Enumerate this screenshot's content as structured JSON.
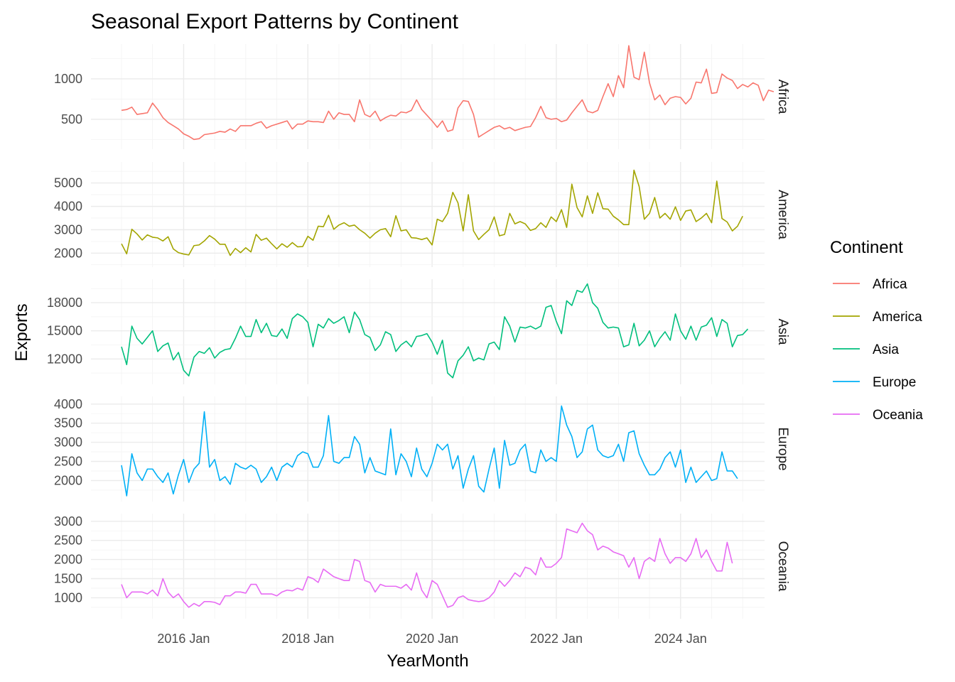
{
  "chart_data": {
    "type": "line",
    "title": "Seasonal Export Patterns by Continent",
    "xlabel": "YearMonth",
    "ylabel": "Exports",
    "x_start": "2015-01",
    "x_frequency": "monthly",
    "x_ticks": [
      "2016 Jan",
      "2018 Jan",
      "2020 Jan",
      "2022 Jan",
      "2024 Jan"
    ],
    "xlim": [
      "2015-01",
      "2024-12"
    ],
    "grid": true,
    "legend": {
      "title": "Continent",
      "position": "right"
    },
    "facets": "stacked vertically, free y scales, strip labels on right",
    "series": [
      {
        "name": "Africa",
        "color": "#F8766D",
        "yticks": [
          500,
          1000
        ],
        "ylim": [
          130,
          1430
        ],
        "values": [
          610,
          620,
          650,
          560,
          570,
          580,
          700,
          620,
          520,
          460,
          420,
          380,
          320,
          290,
          250,
          260,
          310,
          320,
          330,
          350,
          340,
          380,
          350,
          420,
          420,
          420,
          450,
          470,
          390,
          420,
          440,
          460,
          480,
          380,
          440,
          440,
          480,
          470,
          470,
          460,
          600,
          500,
          580,
          560,
          560,
          470,
          740,
          560,
          530,
          600,
          480,
          520,
          550,
          540,
          590,
          580,
          610,
          740,
          620,
          550,
          480,
          400,
          480,
          350,
          370,
          640,
          730,
          720,
          560,
          280,
          320,
          360,
          400,
          420,
          380,
          400,
          360,
          380,
          400,
          410,
          520,
          660,
          520,
          500,
          510,
          470,
          490,
          580,
          660,
          740,
          600,
          580,
          610,
          780,
          940,
          780,
          1040,
          890,
          1410,
          1020,
          990,
          1330,
          950,
          740,
          800,
          680,
          760,
          780,
          770,
          690,
          760,
          960,
          950,
          1120,
          820,
          830,
          1060,
          1010,
          980,
          880,
          930,
          900,
          950,
          920,
          730,
          860,
          840
        ]
      },
      {
        "name": "America",
        "color": "#A3A500",
        "yticks": [
          2000,
          3000,
          4000,
          5000
        ],
        "ylim": [
          1400,
          5900
        ],
        "values": [
          2400,
          1970,
          3020,
          2820,
          2560,
          2780,
          2680,
          2650,
          2520,
          2700,
          2180,
          2020,
          1960,
          1920,
          2320,
          2350,
          2520,
          2750,
          2600,
          2380,
          2380,
          1900,
          2200,
          2020,
          2230,
          2050,
          2800,
          2550,
          2640,
          2400,
          2180,
          2400,
          2250,
          2450,
          2270,
          2280,
          2720,
          2550,
          3150,
          3130,
          3620,
          3020,
          3200,
          3300,
          3150,
          3200,
          3000,
          2850,
          2640,
          2850,
          3000,
          3050,
          2700,
          3600,
          2950,
          3000,
          2660,
          2640,
          2580,
          2650,
          2350,
          3450,
          3350,
          3700,
          4600,
          4150,
          2950,
          4500,
          2950,
          2580,
          2800,
          3000,
          3550,
          2740,
          2800,
          3700,
          3250,
          3350,
          3250,
          2970,
          3050,
          3300,
          3100,
          3550,
          3350,
          3860,
          3100,
          4950,
          3950,
          3550,
          4450,
          3700,
          4580,
          3900,
          3880,
          3580,
          3420,
          3220,
          3220,
          5550,
          4850,
          3450,
          3700,
          4380,
          3500,
          3700,
          3450,
          3980,
          3400,
          3800,
          3850,
          3350,
          3500,
          3700,
          3300,
          5080,
          3480,
          3330,
          2950,
          3150,
          3580
        ]
      },
      {
        "name": "Asia",
        "color": "#00BF7D",
        "yticks": [
          12000,
          15000,
          18000
        ],
        "ylim": [
          9300,
          20500
        ],
        "values": [
          13300,
          11400,
          15500,
          14200,
          13600,
          14300,
          15000,
          12800,
          13400,
          13700,
          11900,
          12700,
          10800,
          10200,
          12200,
          12800,
          12600,
          13200,
          12100,
          12700,
          13000,
          13100,
          14200,
          15500,
          14400,
          14400,
          16200,
          14800,
          15800,
          14500,
          14400,
          15200,
          14200,
          16300,
          16800,
          16500,
          15900,
          13300,
          15700,
          15300,
          16300,
          15800,
          16100,
          16500,
          14800,
          17000,
          16200,
          14600,
          14300,
          12900,
          13500,
          14900,
          14600,
          12800,
          13500,
          13900,
          13300,
          14400,
          14500,
          14700,
          13800,
          12500,
          14000,
          10500,
          10000,
          11800,
          12400,
          13300,
          11800,
          12100,
          11900,
          13600,
          13800,
          13000,
          16500,
          15500,
          13800,
          15400,
          15300,
          15500,
          15200,
          15500,
          17500,
          17700,
          16000,
          14700,
          18200,
          17700,
          19300,
          19100,
          20000,
          18000,
          17400,
          15900,
          15300,
          15400,
          15300,
          13300,
          13500,
          15800,
          13400,
          14000,
          15000,
          13300,
          14200,
          14900,
          14000,
          16800,
          15000,
          14100,
          15500,
          14000,
          15400,
          15600,
          16400,
          14400,
          16200,
          15800,
          13300,
          14500,
          14600,
          15200
        ]
      },
      {
        "name": "Europe",
        "color": "#00B0F6",
        "yticks": [
          2000,
          2500,
          3000,
          3500,
          4000
        ],
        "ylim": [
          1450,
          4200
        ],
        "values": [
          2400,
          1600,
          2700,
          2200,
          2000,
          2300,
          2300,
          2100,
          1950,
          2200,
          1650,
          2150,
          2550,
          1950,
          2300,
          2450,
          3800,
          2350,
          2550,
          2000,
          2100,
          1900,
          2450,
          2350,
          2300,
          2400,
          2300,
          1950,
          2100,
          2350,
          2000,
          2350,
          2450,
          2350,
          2650,
          2750,
          2700,
          2350,
          2350,
          2650,
          3700,
          2500,
          2450,
          2600,
          2600,
          3150,
          2950,
          2200,
          2600,
          2250,
          2200,
          2150,
          3350,
          2150,
          2700,
          2500,
          2100,
          2850,
          2300,
          2100,
          2450,
          2950,
          2800,
          2950,
          2300,
          2650,
          1800,
          2300,
          2650,
          1850,
          1700,
          2300,
          2850,
          1800,
          3050,
          2400,
          2450,
          2800,
          2950,
          2250,
          2200,
          2800,
          2500,
          2600,
          2500,
          3950,
          3450,
          3150,
          2600,
          2750,
          3350,
          3450,
          2800,
          2650,
          2600,
          2650,
          2950,
          2500,
          3250,
          3300,
          2700,
          2400,
          2150,
          2150,
          2300,
          2600,
          2750,
          2350,
          2800,
          1950,
          2350,
          1950,
          2100,
          2250,
          2000,
          2050,
          2750,
          2250,
          2250,
          2050
        ]
      },
      {
        "name": "Oceania",
        "color": "#E76BF3",
        "yticks": [
          1000,
          1500,
          2000,
          2500,
          3000
        ],
        "ylim": [
          450,
          3200
        ],
        "values": [
          1350,
          1000,
          1150,
          1150,
          1150,
          1100,
          1200,
          1050,
          1500,
          1150,
          1000,
          1100,
          900,
          750,
          850,
          780,
          900,
          900,
          880,
          820,
          1050,
          1050,
          1150,
          1150,
          1120,
          1350,
          1350,
          1100,
          1100,
          1100,
          1050,
          1150,
          1200,
          1180,
          1250,
          1200,
          1550,
          1500,
          1400,
          1750,
          1650,
          1550,
          1500,
          1450,
          1450,
          2000,
          1950,
          1450,
          1400,
          1150,
          1350,
          1300,
          1300,
          1300,
          1250,
          1350,
          1200,
          1650,
          1200,
          1000,
          1450,
          1350,
          1050,
          750,
          800,
          1000,
          1050,
          950,
          920,
          900,
          920,
          1000,
          1150,
          1450,
          1300,
          1450,
          1650,
          1550,
          1800,
          1750,
          1600,
          2050,
          1800,
          1800,
          1900,
          2050,
          2800,
          2750,
          2700,
          2950,
          2750,
          2650,
          2250,
          2350,
          2300,
          2200,
          2150,
          2100,
          1800,
          2050,
          1500,
          1950,
          2050,
          1950,
          2550,
          2150,
          1900,
          2050,
          2050,
          1950,
          2150,
          2550,
          2050,
          2250,
          1950,
          1700,
          1700,
          2450,
          1900
        ]
      }
    ]
  }
}
